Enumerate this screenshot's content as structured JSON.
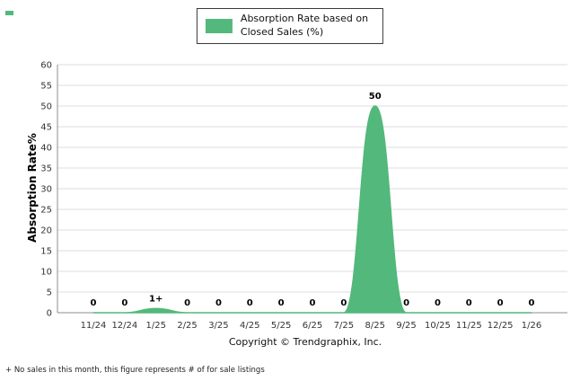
{
  "legend": {
    "label_line1": "Absorption Rate based on",
    "label_line2": "Closed Sales (%)",
    "swatch_color": "#53B87B"
  },
  "chart_data": {
    "type": "area",
    "title": "",
    "categories": [
      "11/24",
      "12/24",
      "1/25",
      "2/25",
      "3/25",
      "4/25",
      "5/25",
      "6/25",
      "7/25",
      "8/25",
      "9/25",
      "10/25",
      "11/25",
      "12/25",
      "1/26"
    ],
    "values": [
      0,
      0,
      1,
      0,
      0,
      0,
      0,
      0,
      0,
      50,
      0,
      0,
      0,
      0,
      0
    ],
    "point_labels": [
      "0",
      "0",
      "1+",
      "0",
      "0",
      "0",
      "0",
      "0",
      "0",
      "50",
      "0",
      "0",
      "0",
      "0",
      "0"
    ],
    "series_name": "Absorption Rate based on Closed Sales (%)",
    "xlabel": "",
    "ylabel": "Absorption Rate%",
    "ylim": [
      0,
      60
    ],
    "ytick_step": 5,
    "grid": true,
    "legend_position": "top",
    "fill_color": "#53B87B",
    "grid_color": "#dcdcdc",
    "axis_color": "#8c8c8c",
    "tick_text_color": "#333333",
    "label_text_color": "#000000"
  },
  "footer": {
    "copyright": "Copyright © Trendgraphix, Inc.",
    "footnote": "+ No sales in this month, this figure represents # of for sale listings"
  }
}
